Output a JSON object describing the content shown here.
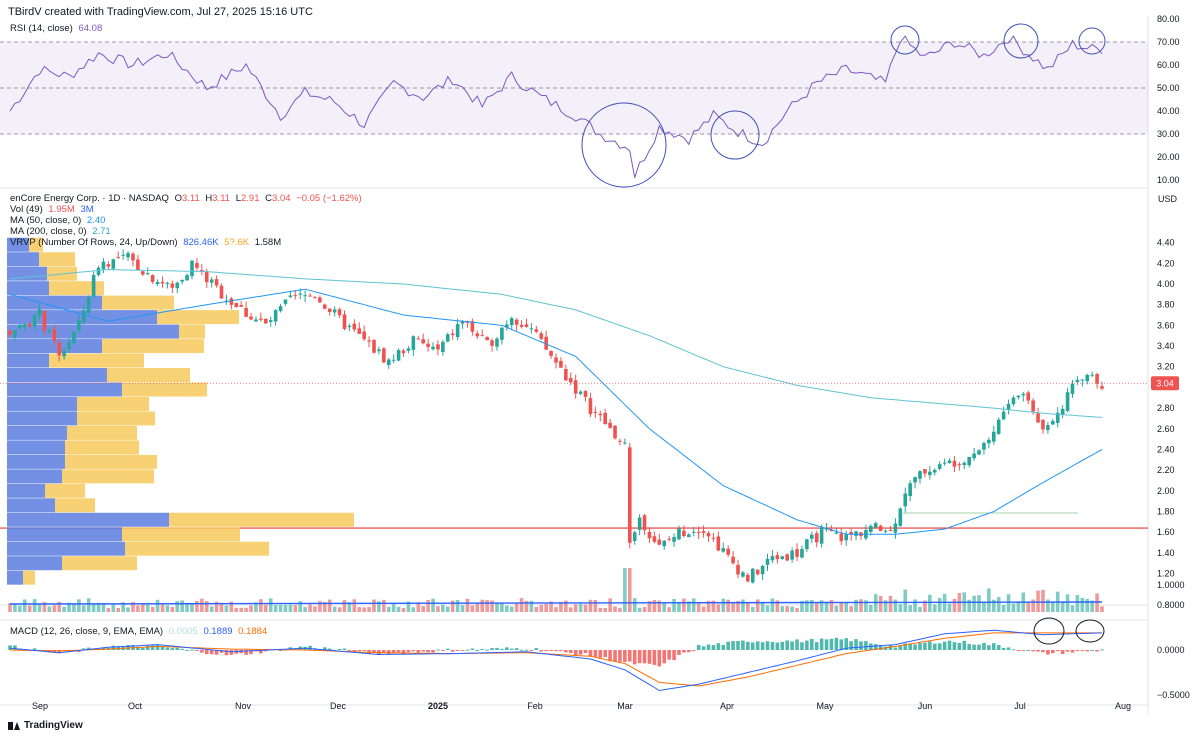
{
  "header": {
    "credit": "TBirdV created with TradingView.com, Jul 27, 2025 15:16 UTC"
  },
  "rsi_legend": {
    "name": "RSI (14, close)",
    "value": "64.08"
  },
  "price_legend": {
    "symbol": "enCore Energy Corp. · 1D · NASDAQ",
    "o_label": "O",
    "o": "3.11",
    "h_label": "H",
    "h": "3.11",
    "l_label": "L",
    "l": "2.91",
    "c_label": "C",
    "c": "3.04",
    "chg": "−0.05 (−1.62%)",
    "vol_label": "Vol (49)",
    "vol1": "1.95M",
    "vol2": "3M",
    "ma50_label": "MA (50, close, 0)",
    "ma50": "2.40",
    "ma200_label": "MA (200, close, 0)",
    "ma200": "2.71",
    "vrvp_label": "VRVP (Number Of Rows, 24, Up/Down)",
    "vrvp_up": "826.46K",
    "vrvp_down": "5?.6K",
    "vrvp_total": "1.58M"
  },
  "macd_legend": {
    "name": "MACD (12, 26, close, 9, EMA, EMA)",
    "hist": "0.0005",
    "macd": "0.1889",
    "signal": "0.1884"
  },
  "branding": {
    "label": "TradingView"
  },
  "colors": {
    "up": "#26a69a",
    "down": "#ef5350",
    "rsi": "#7e57c2",
    "ma50": "#2196f3",
    "ma200": "#5fc3d3",
    "support": "#e53935",
    "vp_up": "#5b7de0",
    "vp_down": "#f7c95c",
    "annotation": "#3f51b5"
  },
  "chart_data": [
    {
      "type": "candlestick",
      "title": "enCore Energy Corp. · 1D · NASDAQ",
      "currency_label": "USD",
      "x_ticks": [
        "Sep",
        "Oct",
        "Nov",
        "Dec",
        "2025",
        "Feb",
        "Mar",
        "Apr",
        "May",
        "Jun",
        "Jul",
        "Aug"
      ],
      "y_ticks": [
        "4.40",
        "4.20",
        "4.00",
        "3.80",
        "3.60",
        "3.40",
        "3.20",
        "2.80",
        "2.60",
        "2.40",
        "2.20",
        "2.00",
        "1.80",
        "1.60",
        "1.40",
        "1.20",
        "1.0000",
        "0.8000"
      ],
      "ylim": [
        0.75,
        4.5
      ],
      "last_price": "3.04",
      "support_level": 1.64,
      "close_anchors": [
        [
          0,
          3.55
        ],
        [
          6,
          3.7
        ],
        [
          10,
          3.3
        ],
        [
          14,
          3.6
        ],
        [
          18,
          4.2
        ],
        [
          24,
          4.25
        ],
        [
          28,
          4.1
        ],
        [
          33,
          3.95
        ],
        [
          37,
          4.2
        ],
        [
          42,
          3.95
        ],
        [
          47,
          3.75
        ],
        [
          52,
          3.6
        ],
        [
          57,
          3.85
        ],
        [
          62,
          3.9
        ],
        [
          67,
          3.65
        ],
        [
          72,
          3.45
        ],
        [
          77,
          3.25
        ],
        [
          82,
          3.45
        ],
        [
          87,
          3.35
        ],
        [
          92,
          3.65
        ],
        [
          97,
          3.4
        ],
        [
          102,
          3.7
        ],
        [
          106,
          3.55
        ],
        [
          110,
          3.3
        ],
        [
          114,
          3.05
        ],
        [
          118,
          2.8
        ],
        [
          122,
          2.6
        ],
        [
          125,
          2.42
        ],
        [
          126,
          1.44
        ],
        [
          128,
          1.75
        ],
        [
          132,
          1.45
        ],
        [
          136,
          1.6
        ],
        [
          141,
          1.65
        ],
        [
          146,
          1.35
        ],
        [
          150,
          1.15
        ],
        [
          155,
          1.35
        ],
        [
          160,
          1.4
        ],
        [
          165,
          1.6
        ],
        [
          170,
          1.55
        ],
        [
          175,
          1.65
        ],
        [
          179,
          1.6
        ],
        [
          182,
          2.0
        ],
        [
          186,
          2.2
        ],
        [
          190,
          2.25
        ],
        [
          195,
          2.35
        ],
        [
          199,
          2.5
        ],
        [
          203,
          2.85
        ],
        [
          206,
          2.95
        ],
        [
          210,
          2.6
        ],
        [
          214,
          2.85
        ],
        [
          217,
          3.05
        ],
        [
          220,
          3.15
        ],
        [
          222,
          3.04
        ]
      ],
      "ma50": [
        [
          0,
          3.9
        ],
        [
          20,
          3.64
        ],
        [
          40,
          3.8
        ],
        [
          60,
          3.95
        ],
        [
          80,
          3.7
        ],
        [
          100,
          3.6
        ],
        [
          115,
          3.3
        ],
        [
          130,
          2.6
        ],
        [
          145,
          2.05
        ],
        [
          160,
          1.72
        ],
        [
          170,
          1.58
        ],
        [
          180,
          1.58
        ],
        [
          190,
          1.63
        ],
        [
          200,
          1.8
        ],
        [
          210,
          2.08
        ],
        [
          222,
          2.4
        ]
      ],
      "ma200": [
        [
          0,
          4.05
        ],
        [
          20,
          4.14
        ],
        [
          40,
          4.12
        ],
        [
          60,
          4.05
        ],
        [
          80,
          4.0
        ],
        [
          100,
          3.9
        ],
        [
          115,
          3.75
        ],
        [
          130,
          3.5
        ],
        [
          145,
          3.2
        ],
        [
          160,
          3.02
        ],
        [
          175,
          2.9
        ],
        [
          190,
          2.84
        ],
        [
          200,
          2.8
        ],
        [
          210,
          2.75
        ],
        [
          222,
          2.71
        ]
      ],
      "volume_profile": [
        {
          "price": 4.38,
          "up": 22,
          "down": 14
        },
        {
          "price": 4.24,
          "up": 32,
          "down": 36
        },
        {
          "price": 4.1,
          "up": 40,
          "down": 30
        },
        {
          "price": 3.96,
          "up": 42,
          "down": 55
        },
        {
          "price": 3.82,
          "up": 95,
          "down": 72
        },
        {
          "price": 3.68,
          "up": 150,
          "down": 82
        },
        {
          "price": 3.54,
          "up": 172,
          "down": 26
        },
        {
          "price": 3.4,
          "up": 95,
          "down": 102
        },
        {
          "price": 3.26,
          "up": 42,
          "down": 95
        },
        {
          "price": 3.12,
          "up": 100,
          "down": 83
        },
        {
          "price": 2.98,
          "up": 115,
          "down": 85
        },
        {
          "price": 2.84,
          "up": 70,
          "down": 72
        },
        {
          "price": 2.7,
          "up": 70,
          "down": 78
        },
        {
          "price": 2.56,
          "up": 60,
          "down": 70
        },
        {
          "price": 2.42,
          "up": 58,
          "down": 74
        },
        {
          "price": 2.28,
          "up": 58,
          "down": 92
        },
        {
          "price": 2.14,
          "up": 55,
          "down": 92
        },
        {
          "price": 2.0,
          "up": 38,
          "down": 40
        },
        {
          "price": 1.86,
          "up": 48,
          "down": 40
        },
        {
          "price": 1.72,
          "up": 162,
          "down": 185
        },
        {
          "price": 1.58,
          "up": 115,
          "down": 118
        },
        {
          "price": 1.44,
          "up": 118,
          "down": 144
        },
        {
          "price": 1.3,
          "up": 55,
          "down": 75
        },
        {
          "price": 1.16,
          "up": 16,
          "down": 12
        }
      ]
    },
    {
      "type": "line",
      "title": "RSI (14, close)",
      "y_ticks": [
        "80.00",
        "70.00",
        "60.00",
        "50.00",
        "40.00",
        "30.00",
        "20.00",
        "10.00"
      ],
      "ylim": [
        7,
        82
      ],
      "levels": [
        70,
        50,
        30
      ],
      "series": [
        {
          "name": "RSI",
          "values": [
            [
              0,
              40
            ],
            [
              6,
              58
            ],
            [
              12,
              55
            ],
            [
              18,
              65
            ],
            [
              25,
              60
            ],
            [
              32,
              65
            ],
            [
              40,
              50
            ],
            [
              48,
              60
            ],
            [
              55,
              38
            ],
            [
              60,
              48
            ],
            [
              66,
              44
            ],
            [
              72,
              34
            ],
            [
              78,
              52
            ],
            [
              84,
              46
            ],
            [
              90,
              54
            ],
            [
              96,
              42
            ],
            [
              102,
              55
            ],
            [
              108,
              46
            ],
            [
              115,
              38
            ],
            [
              120,
              30
            ],
            [
              126,
              24
            ],
            [
              127,
              12
            ],
            [
              132,
              33
            ],
            [
              138,
              28
            ],
            [
              143,
              38
            ],
            [
              148,
              31
            ],
            [
              153,
              26
            ],
            [
              158,
              40
            ],
            [
              164,
              52
            ],
            [
              170,
              58
            ],
            [
              178,
              52
            ],
            [
              181,
              72
            ],
            [
              186,
              63
            ],
            [
              192,
              70
            ],
            [
              198,
              64
            ],
            [
              203,
              72
            ],
            [
              207,
              65
            ],
            [
              211,
              58
            ],
            [
              216,
              69
            ],
            [
              220,
              67
            ]
          ]
        }
      ]
    },
    {
      "type": "line",
      "title": "MACD (12, 26, close, 9, EMA, EMA)",
      "y_ticks": [
        "0.0000",
        "−0.5000"
      ],
      "ylim": [
        -0.52,
        0.28
      ],
      "series": [
        {
          "name": "MACD",
          "values": [
            [
              0,
              0.02
            ],
            [
              10,
              -0.03
            ],
            [
              20,
              0.03
            ],
            [
              30,
              0.06
            ],
            [
              45,
              -0.02
            ],
            [
              60,
              0.02
            ],
            [
              75,
              -0.05
            ],
            [
              90,
              -0.04
            ],
            [
              105,
              -0.02
            ],
            [
              118,
              -0.1
            ],
            [
              125,
              -0.22
            ],
            [
              132,
              -0.45
            ],
            [
              140,
              -0.38
            ],
            [
              150,
              -0.25
            ],
            [
              160,
              -0.12
            ],
            [
              170,
              0.02
            ],
            [
              180,
              0.06
            ],
            [
              190,
              0.18
            ],
            [
              200,
              0.22
            ],
            [
              210,
              0.17
            ],
            [
              222,
              0.19
            ]
          ]
        },
        {
          "name": "Signal",
          "values": [
            [
              0,
              0.0
            ],
            [
              10,
              -0.01
            ],
            [
              20,
              0.01
            ],
            [
              30,
              0.04
            ],
            [
              45,
              0.01
            ],
            [
              60,
              0.0
            ],
            [
              75,
              -0.03
            ],
            [
              90,
              -0.04
            ],
            [
              105,
              -0.03
            ],
            [
              118,
              -0.07
            ],
            [
              125,
              -0.15
            ],
            [
              132,
              -0.36
            ],
            [
              140,
              -0.4
            ],
            [
              150,
              -0.3
            ],
            [
              160,
              -0.17
            ],
            [
              170,
              -0.04
            ],
            [
              180,
              0.04
            ],
            [
              190,
              0.13
            ],
            [
              200,
              0.19
            ],
            [
              210,
              0.19
            ],
            [
              222,
              0.19
            ]
          ]
        }
      ]
    }
  ]
}
